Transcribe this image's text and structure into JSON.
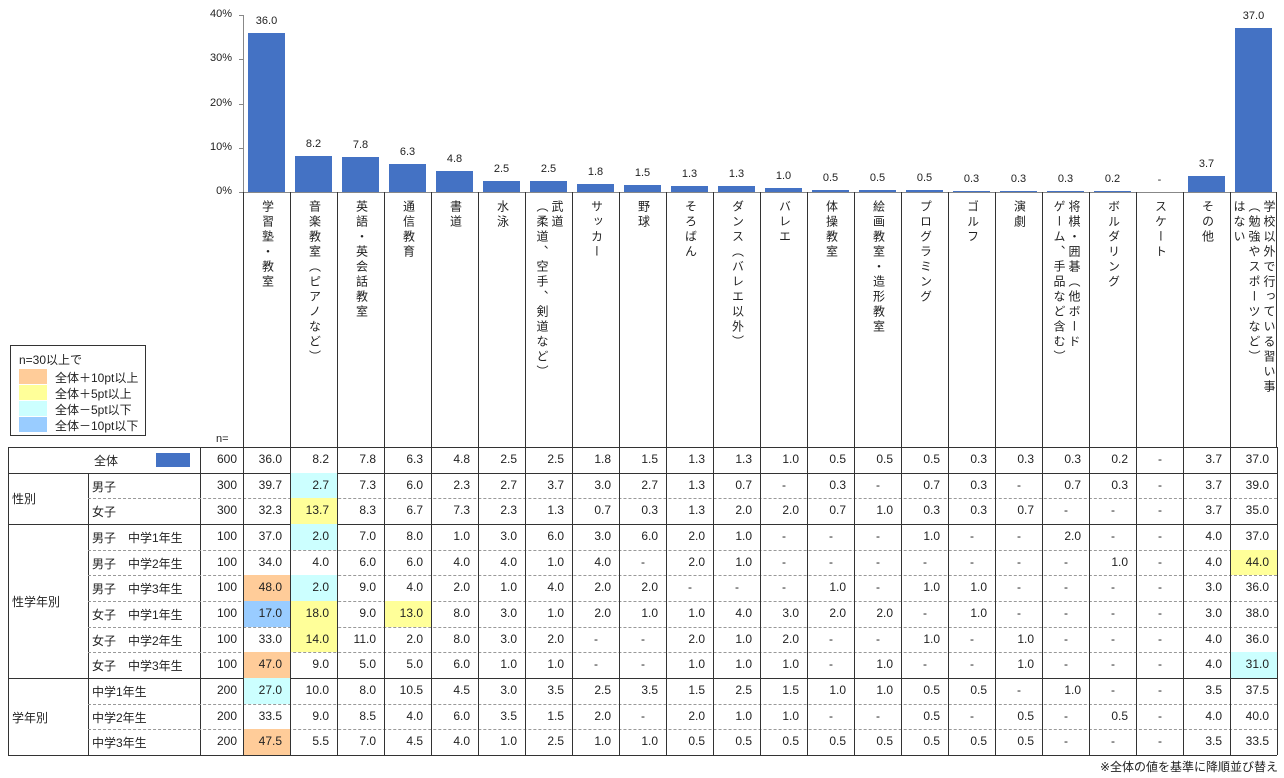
{
  "chart_data": {
    "type": "bar",
    "title": "",
    "ylabel": "",
    "ylim": [
      0,
      40
    ],
    "yticks": [
      "0%",
      "10%",
      "20%",
      "30%",
      "40%"
    ],
    "grid": false,
    "categories": [
      "学習塾・教室",
      "音楽教室（ピアノなど）",
      "英語・英会話教室",
      "通信教育",
      "書道",
      "水泳",
      "武道\n（柔道、空手、剣道など）",
      "サッカー",
      "野球",
      "そろばん",
      "ダンス（バレエ以外）",
      "バレエ",
      "体操教室",
      "絵画教室・造形教室",
      "プログラミング",
      "ゴルフ",
      "演劇",
      "将棋・囲碁（他ボード\nゲーム、手品など含む）",
      "ボルダリング",
      "スケート",
      "その他",
      "学校以外で行っている習い事\n（勉強やスポーツなど）\nはない"
    ],
    "values": [
      36.0,
      8.2,
      7.8,
      6.3,
      4.8,
      2.5,
      2.5,
      1.8,
      1.5,
      1.3,
      1.3,
      1.0,
      0.5,
      0.5,
      0.5,
      0.3,
      0.3,
      0.3,
      0.2,
      null,
      3.7,
      37.0
    ],
    "value_labels": [
      "36.0",
      "8.2",
      "7.8",
      "6.3",
      "4.8",
      "2.5",
      "2.5",
      "1.8",
      "1.5",
      "1.3",
      "1.3",
      "1.0",
      "0.5",
      "0.5",
      "0.5",
      "0.3",
      "0.3",
      "0.3",
      "0.2",
      "-",
      "3.7",
      "37.0"
    ]
  },
  "legend": {
    "title": "n=30以上で",
    "items": [
      {
        "label": "全体＋10pt以上",
        "color": "#FFCC99"
      },
      {
        "label": "全体＋5pt以上",
        "color": "#FFFF99"
      },
      {
        "label": "全体－5pt以下",
        "color": "#CCFFFF"
      },
      {
        "label": "全体－10pt以下",
        "color": "#99CCFF"
      }
    ]
  },
  "colors": {
    "bar": "#4472C4",
    "plus10": "#FFCC99",
    "plus5": "#FFFF99",
    "minus5": "#CCFFFF",
    "minus10": "#99CCFF"
  },
  "n_header": "n=",
  "footnote": "※全体の値を基準に降順並び替え",
  "table": {
    "groups": [
      {
        "label": "",
        "rows": [
          {
            "label": "全体",
            "n": "600",
            "values": [
              "36.0",
              "8.2",
              "7.8",
              "6.3",
              "4.8",
              "2.5",
              "2.5",
              "1.8",
              "1.5",
              "1.3",
              "1.3",
              "1.0",
              "0.5",
              "0.5",
              "0.5",
              "0.3",
              "0.3",
              "0.3",
              "0.2",
              "-",
              "3.7",
              "37.0"
            ],
            "hl": {}
          }
        ]
      },
      {
        "label": "性別",
        "rows": [
          {
            "label": "男子",
            "n": "300",
            "values": [
              "39.7",
              "2.7",
              "7.3",
              "6.0",
              "2.3",
              "2.7",
              "3.7",
              "3.0",
              "2.7",
              "1.3",
              "0.7",
              "-",
              "0.3",
              "-",
              "0.7",
              "0.3",
              "-",
              "0.7",
              "0.3",
              "-",
              "3.7",
              "39.0"
            ],
            "hl": {
              "1": "minus5"
            }
          },
          {
            "label": "女子",
            "n": "300",
            "values": [
              "32.3",
              "13.7",
              "8.3",
              "6.7",
              "7.3",
              "2.3",
              "1.3",
              "0.7",
              "0.3",
              "1.3",
              "2.0",
              "2.0",
              "0.7",
              "1.0",
              "0.3",
              "0.3",
              "0.7",
              "-",
              "-",
              "-",
              "3.7",
              "35.0"
            ],
            "hl": {
              "1": "plus5"
            }
          }
        ]
      },
      {
        "label": "性学年別",
        "rows": [
          {
            "label": "男子　中学1年生",
            "n": "100",
            "values": [
              "37.0",
              "2.0",
              "7.0",
              "8.0",
              "1.0",
              "3.0",
              "6.0",
              "3.0",
              "6.0",
              "2.0",
              "1.0",
              "-",
              "-",
              "-",
              "1.0",
              "-",
              "-",
              "2.0",
              "-",
              "-",
              "4.0",
              "37.0"
            ],
            "hl": {
              "1": "minus5"
            }
          },
          {
            "label": "男子　中学2年生",
            "n": "100",
            "values": [
              "34.0",
              "4.0",
              "6.0",
              "6.0",
              "4.0",
              "4.0",
              "1.0",
              "4.0",
              "-",
              "2.0",
              "1.0",
              "-",
              "-",
              "-",
              "-",
              "-",
              "-",
              "-",
              "1.0",
              "-",
              "4.0",
              "44.0"
            ],
            "hl": {
              "21": "plus5"
            }
          },
          {
            "label": "男子　中学3年生",
            "n": "100",
            "values": [
              "48.0",
              "2.0",
              "9.0",
              "4.0",
              "2.0",
              "1.0",
              "4.0",
              "2.0",
              "2.0",
              "-",
              "-",
              "-",
              "1.0",
              "-",
              "1.0",
              "1.0",
              "-",
              "-",
              "-",
              "-",
              "3.0",
              "36.0"
            ],
            "hl": {
              "0": "plus10",
              "1": "minus5"
            }
          },
          {
            "label": "女子　中学1年生",
            "n": "100",
            "values": [
              "17.0",
              "18.0",
              "9.0",
              "13.0",
              "8.0",
              "3.0",
              "1.0",
              "2.0",
              "1.0",
              "1.0",
              "4.0",
              "3.0",
              "2.0",
              "2.0",
              "-",
              "1.0",
              "-",
              "-",
              "-",
              "-",
              "3.0",
              "38.0"
            ],
            "hl": {
              "0": "minus10",
              "1": "plus5",
              "3": "plus5"
            }
          },
          {
            "label": "女子　中学2年生",
            "n": "100",
            "values": [
              "33.0",
              "14.0",
              "11.0",
              "2.0",
              "8.0",
              "3.0",
              "2.0",
              "-",
              "-",
              "2.0",
              "1.0",
              "2.0",
              "-",
              "-",
              "1.0",
              "-",
              "1.0",
              "-",
              "-",
              "-",
              "4.0",
              "36.0"
            ],
            "hl": {
              "1": "plus5"
            }
          },
          {
            "label": "女子　中学3年生",
            "n": "100",
            "values": [
              "47.0",
              "9.0",
              "5.0",
              "5.0",
              "6.0",
              "1.0",
              "1.0",
              "-",
              "-",
              "1.0",
              "1.0",
              "1.0",
              "-",
              "1.0",
              "-",
              "-",
              "1.0",
              "-",
              "-",
              "-",
              "4.0",
              "31.0"
            ],
            "hl": {
              "0": "plus10",
              "21": "minus5"
            }
          }
        ]
      },
      {
        "label": "学年別",
        "rows": [
          {
            "label": "中学1年生",
            "n": "200",
            "values": [
              "27.0",
              "10.0",
              "8.0",
              "10.5",
              "4.5",
              "3.0",
              "3.5",
              "2.5",
              "3.5",
              "1.5",
              "2.5",
              "1.5",
              "1.0",
              "1.0",
              "0.5",
              "0.5",
              "-",
              "1.0",
              "-",
              "-",
              "3.5",
              "37.5"
            ],
            "hl": {
              "0": "minus5"
            }
          },
          {
            "label": "中学2年生",
            "n": "200",
            "values": [
              "33.5",
              "9.0",
              "8.5",
              "4.0",
              "6.0",
              "3.5",
              "1.5",
              "2.0",
              "-",
              "2.0",
              "1.0",
              "1.0",
              "-",
              "-",
              "0.5",
              "-",
              "0.5",
              "-",
              "0.5",
              "-",
              "4.0",
              "40.0"
            ],
            "hl": {}
          },
          {
            "label": "中学3年生",
            "n": "200",
            "values": [
              "47.5",
              "5.5",
              "7.0",
              "4.5",
              "4.0",
              "1.0",
              "2.5",
              "1.0",
              "1.0",
              "0.5",
              "0.5",
              "0.5",
              "0.5",
              "0.5",
              "0.5",
              "0.5",
              "0.5",
              "-",
              "-",
              "-",
              "3.5",
              "33.5"
            ],
            "hl": {
              "0": "plus10"
            }
          }
        ]
      }
    ]
  }
}
